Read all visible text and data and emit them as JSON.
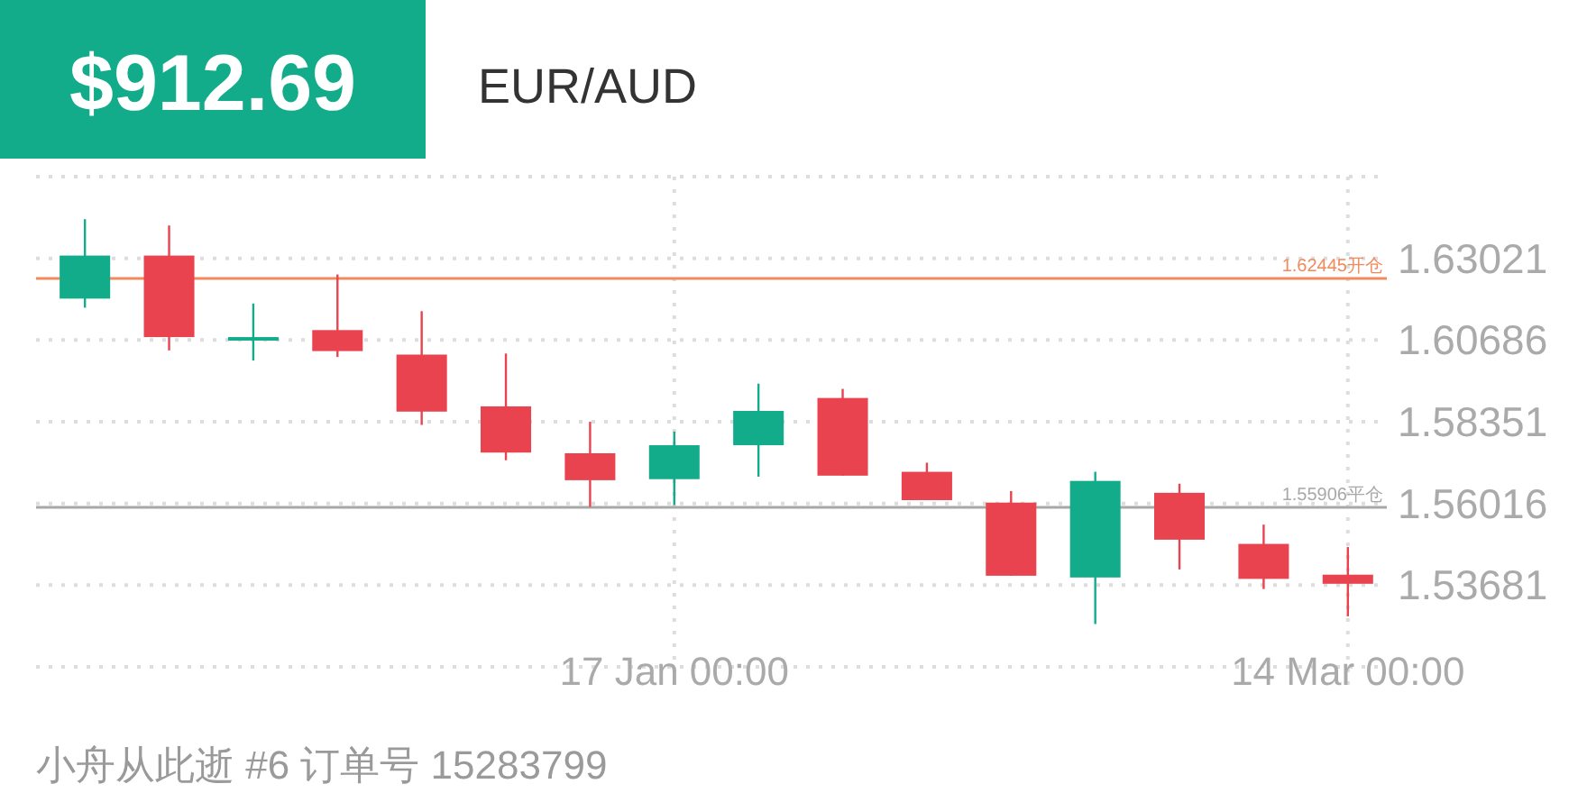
{
  "chart_data": {
    "type": "candlestick",
    "title": "EUR/AUD",
    "annotations": [
      "$912.69",
      "小舟从此逝 #6   订单号 15283799"
    ],
    "categories": [
      null,
      null,
      null,
      null,
      null,
      null,
      null,
      "17 Jan 00:00",
      null,
      null,
      null,
      null,
      null,
      null,
      null,
      "14 Mar 00:00"
    ],
    "ohlc": [
      [
        1.6187,
        1.6414,
        1.6161,
        1.631
      ],
      [
        1.631,
        1.6396,
        1.6039,
        1.6077
      ],
      [
        1.6067,
        1.6173,
        1.601,
        1.6077
      ],
      [
        1.6097,
        1.6256,
        1.602,
        1.6037
      ],
      [
        1.6027,
        1.6151,
        1.5826,
        1.5864
      ],
      [
        1.5879,
        1.603,
        1.5725,
        1.5747
      ],
      [
        1.5745,
        1.5835,
        1.5592,
        1.5668
      ],
      [
        1.5671,
        1.5807,
        1.5597,
        1.5768
      ],
      [
        1.5768,
        1.5944,
        1.5678,
        1.5866
      ],
      [
        1.5903,
        1.5929,
        1.5681,
        1.5681
      ],
      [
        1.5692,
        1.5718,
        1.5611,
        1.5611
      ],
      [
        1.5604,
        1.5637,
        1.5395,
        1.5395
      ],
      [
        1.539,
        1.5692,
        1.5257,
        1.5666
      ],
      [
        1.5632,
        1.5658,
        1.5413,
        1.5498
      ],
      [
        1.5486,
        1.5541,
        1.5357,
        1.5386
      ],
      [
        1.5398,
        1.5477,
        1.5279,
        1.5372
      ]
    ],
    "colors": [
      "#12ac8a",
      "#e8434f",
      "#12ac8a",
      "#e8434f",
      "#e8434f",
      "#e8434f",
      "#e8434f",
      "#12ac8a",
      "#12ac8a",
      "#e8434f",
      "#e8434f",
      "#e8434f",
      "#12ac8a",
      "#e8434f",
      "#e8434f",
      "#e8434f"
    ],
    "ylim": [
      1.51346,
      1.65356
    ],
    "yticks": [
      {
        "value": 1.51346,
        "label": null
      },
      1.53681,
      1.56016,
      1.58351,
      1.60686,
      1.63021,
      {
        "value": 1.65356,
        "label": null
      }
    ],
    "ref_lines": [
      {
        "axis": "y",
        "value": 1.62445,
        "label": "1.62445开仓",
        "color": "#f28a5c"
      },
      {
        "axis": "y",
        "value": 1.55906,
        "label": "1.55906平仓",
        "color": "#a8a8a8"
      }
    ],
    "grid": true
  }
}
